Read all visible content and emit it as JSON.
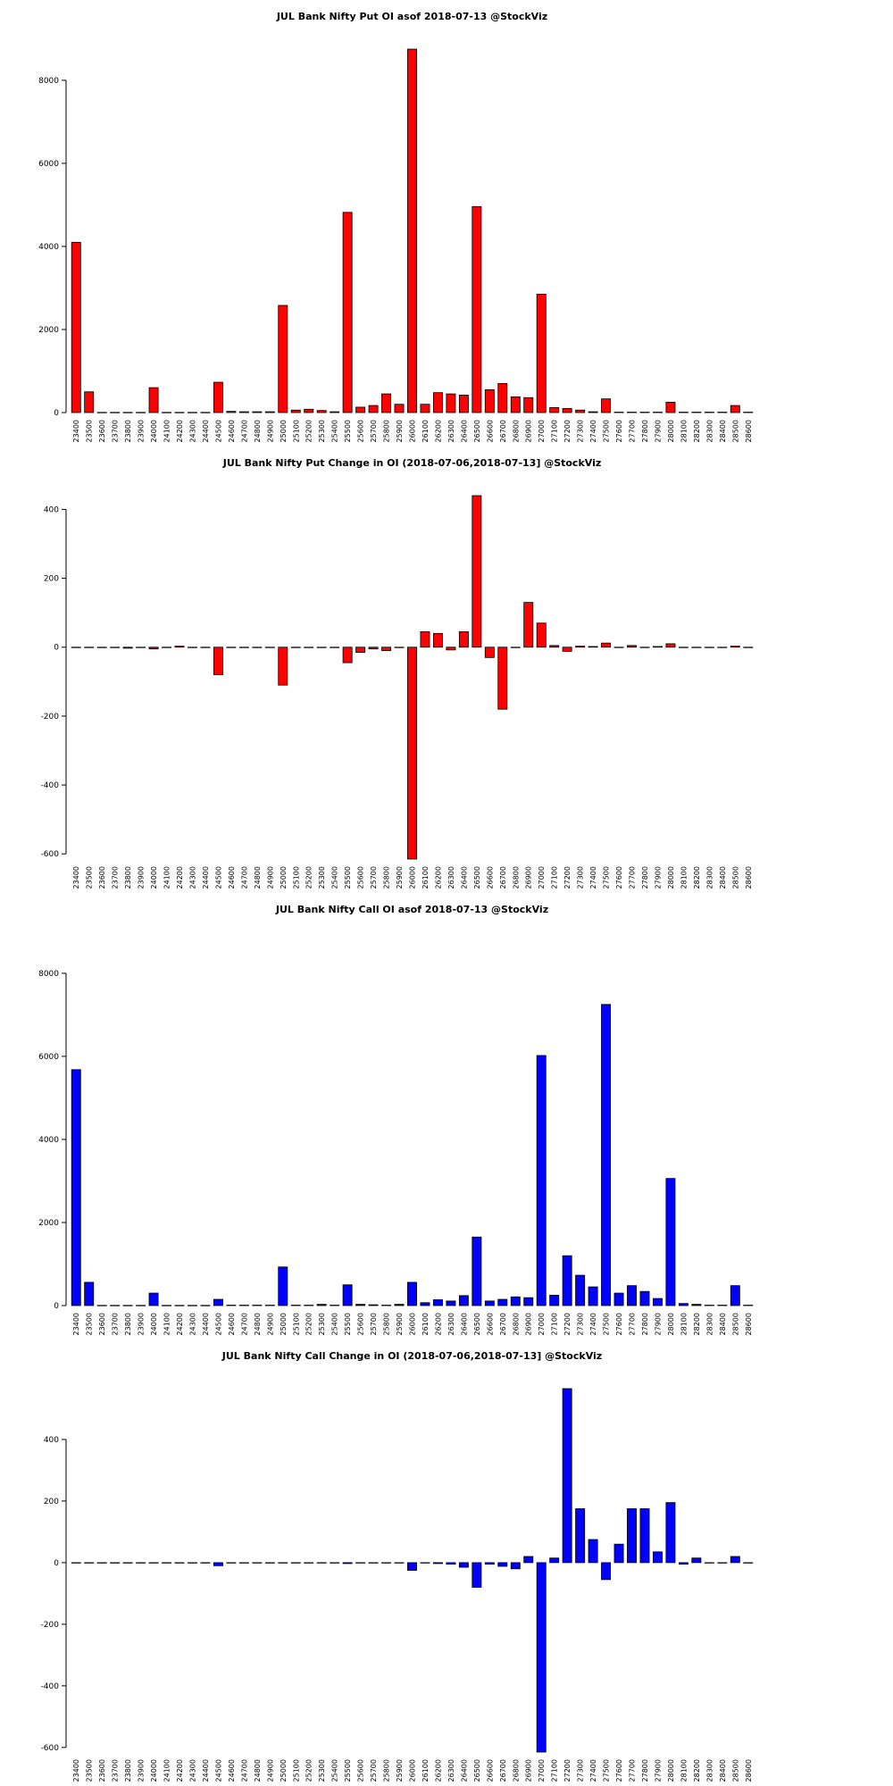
{
  "chart_data": [
    {
      "type": "bar",
      "title": "JUL Bank Nifty Put OI asof 2018-07-13 @StockViz",
      "categories": [
        "23400",
        "23500",
        "23600",
        "23700",
        "23800",
        "23900",
        "24000",
        "24100",
        "24200",
        "24300",
        "24400",
        "24500",
        "24600",
        "24700",
        "24800",
        "24900",
        "25000",
        "25100",
        "25200",
        "25300",
        "25400",
        "25500",
        "25600",
        "25700",
        "25800",
        "25900",
        "26000",
        "26100",
        "26200",
        "26300",
        "26400",
        "26500",
        "26600",
        "26700",
        "26800",
        "26900",
        "27000",
        "27100",
        "27200",
        "27300",
        "27400",
        "27500",
        "27600",
        "27700",
        "27800",
        "27900",
        "28000",
        "28100",
        "28200",
        "28300",
        "28400",
        "28500",
        "28600"
      ],
      "values": [
        4100,
        500,
        5,
        5,
        5,
        5,
        600,
        5,
        5,
        5,
        5,
        730,
        30,
        20,
        20,
        20,
        2580,
        60,
        80,
        50,
        20,
        4820,
        130,
        170,
        450,
        200,
        8750,
        200,
        480,
        450,
        420,
        4960,
        550,
        700,
        380,
        360,
        2850,
        120,
        100,
        60,
        20,
        330,
        10,
        10,
        10,
        10,
        250,
        10,
        10,
        10,
        10,
        170,
        10
      ],
      "color": "#ff0000",
      "ylim": [
        0,
        8750
      ],
      "yticks": [
        0,
        2000,
        4000,
        6000,
        8000
      ]
    },
    {
      "type": "bar",
      "title": "JUL Bank Nifty Put Change in OI (2018-07-06,2018-07-13] @StockViz",
      "categories": [
        "23400",
        "23500",
        "23600",
        "23700",
        "23800",
        "23900",
        "24000",
        "24100",
        "24200",
        "24300",
        "24400",
        "24500",
        "24600",
        "24700",
        "24800",
        "24900",
        "25000",
        "25100",
        "25200",
        "25300",
        "25400",
        "25500",
        "25600",
        "25700",
        "25800",
        "25900",
        "26000",
        "26100",
        "26200",
        "26300",
        "26400",
        "26500",
        "26600",
        "26700",
        "26800",
        "26900",
        "27000",
        "27100",
        "27200",
        "27300",
        "27400",
        "27500",
        "27600",
        "27700",
        "27800",
        "27900",
        "28000",
        "28100",
        "28200",
        "28300",
        "28400",
        "28500",
        "28600"
      ],
      "values": [
        0,
        0,
        0,
        0,
        -3,
        0,
        -5,
        0,
        3,
        0,
        0,
        -80,
        0,
        0,
        0,
        0,
        -110,
        0,
        0,
        0,
        0,
        -45,
        -15,
        -5,
        -10,
        0,
        -615,
        45,
        40,
        -8,
        45,
        440,
        -30,
        -180,
        0,
        130,
        70,
        5,
        -12,
        3,
        2,
        12,
        0,
        5,
        0,
        2,
        10,
        0,
        0,
        0,
        0,
        3,
        0
      ],
      "color": "#ff0000",
      "ylim": [
        -615,
        440
      ],
      "yticks": [
        -600,
        -400,
        -200,
        0,
        200,
        400
      ]
    },
    {
      "type": "bar",
      "title": "JUL Bank Nifty Call OI asof 2018-07-13 @StockViz",
      "categories": [
        "23400",
        "23500",
        "23600",
        "23700",
        "23800",
        "23900",
        "24000",
        "24100",
        "24200",
        "24300",
        "24400",
        "24500",
        "24600",
        "24700",
        "24800",
        "24900",
        "25000",
        "25100",
        "25200",
        "25300",
        "25400",
        "25500",
        "25600",
        "25700",
        "25800",
        "25900",
        "26000",
        "26100",
        "26200",
        "26300",
        "26400",
        "26500",
        "26600",
        "26700",
        "26800",
        "26900",
        "27000",
        "27100",
        "27200",
        "27300",
        "27400",
        "27500",
        "27600",
        "27700",
        "27800",
        "27900",
        "28000",
        "28100",
        "28200",
        "28300",
        "28400",
        "28500",
        "28600"
      ],
      "values": [
        5680,
        560,
        5,
        5,
        5,
        5,
        300,
        5,
        5,
        5,
        5,
        150,
        10,
        10,
        10,
        10,
        930,
        10,
        10,
        30,
        10,
        500,
        30,
        20,
        10,
        30,
        560,
        70,
        140,
        110,
        240,
        1650,
        110,
        150,
        210,
        190,
        6020,
        250,
        1200,
        730,
        450,
        7250,
        300,
        480,
        340,
        170,
        3060,
        50,
        30,
        10,
        10,
        480,
        10
      ],
      "color": "#0000ff",
      "ylim": [
        0,
        8750
      ],
      "yticks": [
        0,
        2000,
        4000,
        6000,
        8000
      ]
    },
    {
      "type": "bar",
      "title": "JUL Bank Nifty Call Change in OI (2018-07-06,2018-07-13] @StockViz",
      "categories": [
        "23400",
        "23500",
        "23600",
        "23700",
        "23800",
        "23900",
        "24000",
        "24100",
        "24200",
        "24300",
        "24400",
        "24500",
        "24600",
        "24700",
        "24800",
        "24900",
        "25000",
        "25100",
        "25200",
        "25300",
        "25400",
        "25500",
        "25600",
        "25700",
        "25800",
        "25900",
        "26000",
        "26100",
        "26200",
        "26300",
        "26400",
        "26500",
        "26600",
        "26700",
        "26800",
        "26900",
        "27000",
        "27100",
        "27200",
        "27300",
        "27400",
        "27500",
        "27600",
        "27700",
        "27800",
        "27900",
        "28000",
        "28100",
        "28200",
        "28300",
        "28400",
        "28500",
        "28600"
      ],
      "values": [
        0,
        0,
        0,
        0,
        0,
        0,
        0,
        0,
        0,
        0,
        0,
        -10,
        0,
        0,
        0,
        0,
        0,
        0,
        0,
        0,
        0,
        -3,
        0,
        0,
        0,
        0,
        -25,
        0,
        -3,
        -5,
        -15,
        -80,
        -5,
        -12,
        -20,
        20,
        -615,
        15,
        565,
        175,
        75,
        -55,
        60,
        175,
        175,
        35,
        195,
        -5,
        15,
        0,
        0,
        20,
        0
      ],
      "color": "#0000ff",
      "ylim": [
        -615,
        565
      ],
      "yticks": [
        -600,
        -400,
        -200,
        0,
        200,
        400
      ]
    }
  ]
}
